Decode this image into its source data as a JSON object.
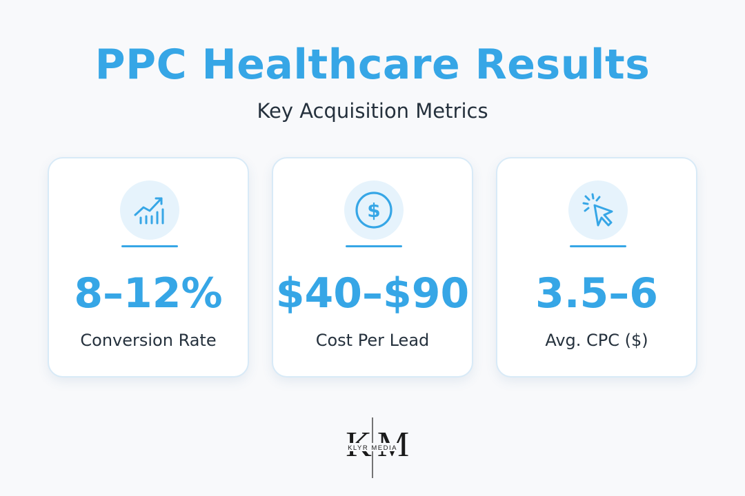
{
  "title": "PPC Healthcare Results",
  "subtitle": "Key Acquisition Metrics",
  "cards": [
    {
      "icon": "trending-chart-icon",
      "value": "8–12%",
      "label": "Conversion Rate"
    },
    {
      "icon": "dollar-coin-icon",
      "value": "$40–$90",
      "label": "Cost Per Lead"
    },
    {
      "icon": "cursor-click-icon",
      "value": "3.5–6",
      "label": "Avg. CPC ($)"
    }
  ],
  "logo": {
    "monogram": "KM",
    "brand": "KLYR MEDIA"
  },
  "colors": {
    "accent": "#36a6e6",
    "text": "#25313d",
    "icon_bg": "#e6f3fc",
    "background": "#f8f9fb"
  }
}
